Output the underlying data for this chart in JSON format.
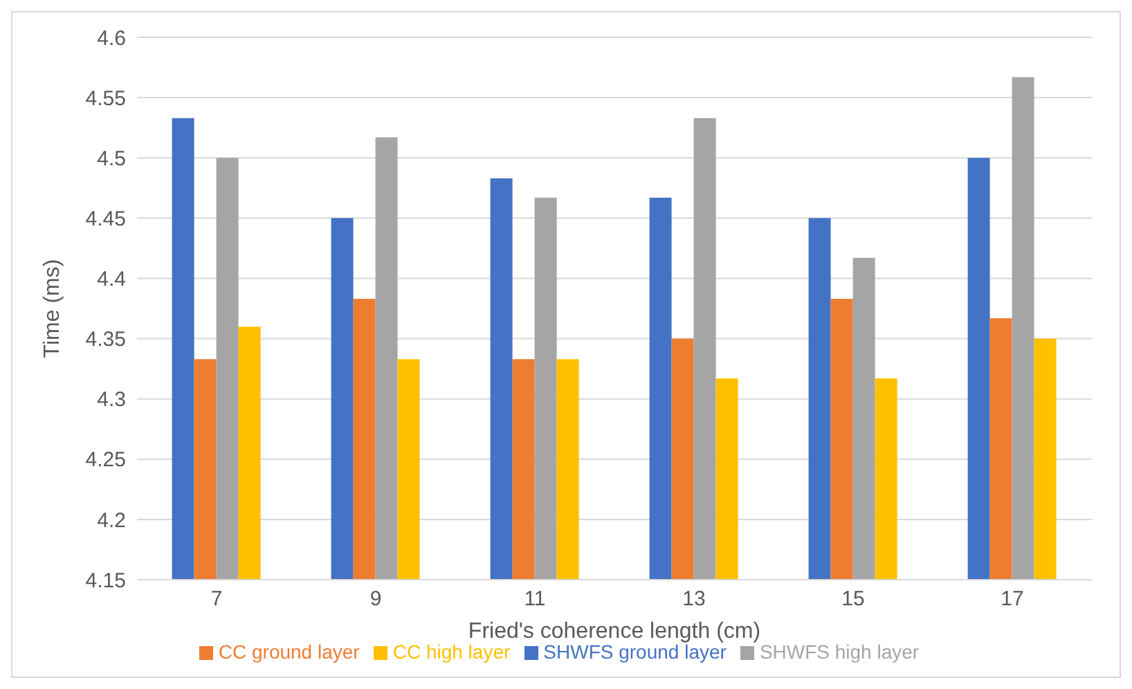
{
  "chart_data": {
    "type": "bar",
    "xlabel": "Fried's coherence length (cm)",
    "ylabel": "Time  (ms)",
    "categories": [
      "7",
      "9",
      "11",
      "13",
      "15",
      "17"
    ],
    "series": [
      {
        "name": "SHWFS ground layer",
        "color": "#4472c4",
        "values": [
          4.533,
          4.45,
          4.483,
          4.467,
          4.45,
          4.5
        ]
      },
      {
        "name": "CC ground layer",
        "color": "#ed7d31",
        "values": [
          4.333,
          4.383,
          4.333,
          4.35,
          4.383,
          4.367
        ]
      },
      {
        "name": "SHWFS high layer",
        "color": "#a5a5a5",
        "values": [
          4.5,
          4.517,
          4.467,
          4.533,
          4.417,
          4.567
        ]
      },
      {
        "name": "CC high layer",
        "color": "#ffc000",
        "values": [
          4.36,
          4.333,
          4.333,
          4.317,
          4.317,
          4.35
        ]
      }
    ],
    "ylim": [
      4.15,
      4.6
    ],
    "yticks": [
      4.15,
      4.2,
      4.25,
      4.3,
      4.35,
      4.4,
      4.45,
      4.5,
      4.55,
      4.6
    ],
    "grid": "y",
    "legend": "bottom"
  }
}
